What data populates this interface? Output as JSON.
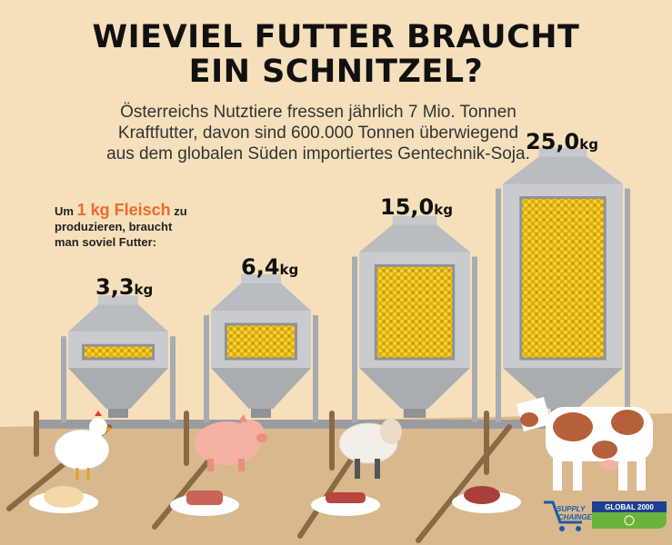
{
  "title": {
    "line1": "WIEVIEL FUTTER BRAUCHT",
    "line2": "EIN SCHNITZEL?"
  },
  "intro": [
    "Österreichs Nutztiere fressen jährlich 7 Mio. Tonnen",
    "Kraftfutter, davon sind 600.000 Tonnen überwiegend",
    "aus dem globalen Süden importiertes Gentechnik-Soja."
  ],
  "lead": {
    "pre": "Um",
    "highlight": "1 kg Fleisch",
    "post": "zu",
    "line2": "produzieren, braucht",
    "line3": "man soviel Futter:"
  },
  "silos": [
    {
      "animal": "chicken",
      "value": "3,3",
      "unit": "kg",
      "feed_kg": 3.3
    },
    {
      "animal": "pig",
      "value": "6,4",
      "unit": "kg",
      "feed_kg": 6.4
    },
    {
      "animal": "sheep",
      "value": "15,0",
      "unit": "kg",
      "feed_kg": 15.0
    },
    {
      "animal": "cow",
      "value": "25,0",
      "unit": "kg",
      "feed_kg": 25.0
    }
  ],
  "logos": {
    "supply_change": "SUPPLY CHAINGE",
    "global2000": "GLOBAL 2000"
  },
  "colors": {
    "background": "#f6e0bb",
    "floor": "#d9b88e",
    "feed": "#f2c81e",
    "highlight": "#ef6a2a",
    "silo": "#b9bcc0",
    "global_blue": "#1d3f8f",
    "global_green": "#6bb23a"
  }
}
